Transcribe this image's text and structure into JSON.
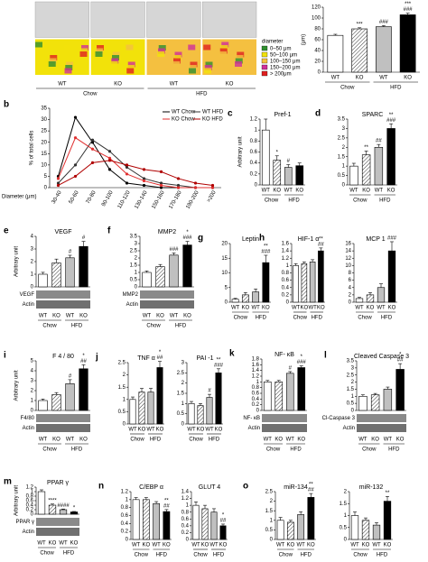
{
  "chart_data": [
    {
      "type": "image",
      "panel": "a",
      "categories": [
        "WT",
        "KO",
        "WT",
        "KO"
      ],
      "groups": [
        "Chow",
        "HFD"
      ],
      "legend_title": "diameter",
      "legend": [
        {
          "label": "0–50 μm",
          "color": "#2f8f2f"
        },
        {
          "label": "50–100 μm",
          "color": "#f2e20a"
        },
        {
          "label": "100–150 μm",
          "color": "#f4c040"
        },
        {
          "label": "150–200 μm",
          "color": "#d0309a"
        },
        {
          "label": "> 200μm",
          "color": "#e02020"
        }
      ]
    },
    {
      "type": "bar",
      "ylabel": "(μm)",
      "categories": [
        "WT",
        "KO",
        "WT",
        "KO"
      ],
      "groups": [
        "Chow",
        "HFD"
      ],
      "values": [
        68,
        80,
        84,
        106
      ],
      "errors": [
        2,
        2,
        2,
        3
      ],
      "ylim": [
        0,
        120
      ],
      "yticks": [
        0,
        20,
        40,
        60,
        80,
        100,
        120
      ],
      "colors": [
        "#ffffff",
        "#ffffff",
        "#c0c0c0",
        "#000000"
      ],
      "hatched": [
        false,
        true,
        false,
        false
      ],
      "annotations": [
        null,
        [
          "***"
        ],
        [
          "###"
        ],
        [
          "***",
          "###"
        ]
      ]
    },
    {
      "type": "line",
      "panel": "b",
      "ylabel": "% of total cells",
      "xlabel": "Diameter (μm)",
      "categories": [
        "30-40",
        "50-60",
        "70-80",
        "90-100",
        "110-120",
        "130-140",
        "150-160",
        "170-180",
        "190-200",
        ">200"
      ],
      "ylim": [
        0,
        35
      ],
      "yticks": [
        0,
        5,
        10,
        15,
        20,
        25,
        30,
        35
      ],
      "series": [
        {
          "name": "WT Chow",
          "color": "#000000",
          "values": [
            5,
            31,
            20,
            8,
            2,
            1,
            0,
            0,
            0,
            0
          ]
        },
        {
          "name": "WT HFD",
          "color": "#333333",
          "values": [
            2,
            10,
            21,
            16,
            9,
            4,
            2,
            1,
            0,
            0
          ]
        },
        {
          "name": "KO Chow",
          "color": "#e03030",
          "values": [
            4,
            22,
            17,
            13,
            6,
            3,
            1,
            0,
            0,
            0
          ]
        },
        {
          "name": "KO HFD",
          "color": "#b00000",
          "values": [
            1,
            5,
            11,
            12,
            10,
            8,
            7,
            4,
            2,
            1
          ]
        }
      ]
    },
    {
      "type": "bar",
      "panel": "c",
      "title": "Pref-1",
      "ylabel": "Arbitrary unit",
      "categories": [
        "WT",
        "KO",
        "WT",
        "KO"
      ],
      "groups": [
        "Chow",
        "HFD"
      ],
      "values": [
        1.0,
        0.45,
        0.32,
        0.35
      ],
      "errors": [
        0.2,
        0.08,
        0.05,
        0.05
      ],
      "ylim": [
        0,
        1.2
      ],
      "yticks": [
        0,
        0.2,
        0.4,
        0.6,
        0.8,
        1,
        1.2
      ],
      "colors": [
        "#ffffff",
        "#ffffff",
        "#c0c0c0",
        "#000000"
      ],
      "hatched": [
        false,
        true,
        false,
        false
      ],
      "annotations": [
        null,
        [
          "*"
        ],
        [
          "#"
        ],
        null
      ]
    },
    {
      "type": "bar",
      "panel": "d",
      "title": "SPARC",
      "categories": [
        "WT",
        "KO",
        "WT",
        "KO"
      ],
      "groups": [
        "Chow",
        "HFD"
      ],
      "values": [
        1.0,
        1.6,
        2.0,
        3.0
      ],
      "errors": [
        0.15,
        0.2,
        0.15,
        0.25
      ],
      "ylim": [
        0,
        3.5
      ],
      "yticks": [
        0,
        0.5,
        1,
        1.5,
        2,
        2.5,
        3,
        3.5
      ],
      "colors": [
        "#ffffff",
        "#ffffff",
        "#c0c0c0",
        "#000000"
      ],
      "hatched": [
        false,
        true,
        false,
        false
      ],
      "annotations": [
        null,
        [
          "**"
        ],
        [
          "##"
        ],
        [
          "**",
          "###"
        ]
      ]
    },
    {
      "type": "bar",
      "panel": "e",
      "title": "VEGF",
      "ylabel": "Arbitrary unit",
      "categories": [
        "WT",
        "KO",
        "WT",
        "KO"
      ],
      "groups": [
        "Chow",
        "HFD"
      ],
      "values": [
        1.0,
        1.9,
        2.3,
        3.2
      ],
      "errors": [
        0.15,
        0.3,
        0.2,
        0.4
      ],
      "ylim": [
        0,
        4
      ],
      "yticks": [
        0,
        1,
        2,
        3,
        4
      ],
      "colors": [
        "#ffffff",
        "#ffffff",
        "#c0c0c0",
        "#000000"
      ],
      "hatched": [
        false,
        true,
        false,
        false
      ],
      "annotations": [
        null,
        null,
        [
          "#"
        ],
        [
          "#"
        ]
      ],
      "blot_labels": [
        "VEGF",
        "Actin"
      ]
    },
    {
      "type": "bar",
      "panel": "f",
      "title": "MMP2",
      "categories": [
        "WT",
        "KO",
        "WT",
        "KO"
      ],
      "groups": [
        "Chow",
        "HFD"
      ],
      "values": [
        1.0,
        1.4,
        2.2,
        2.9
      ],
      "errors": [
        0.1,
        0.15,
        0.15,
        0.25
      ],
      "ylim": [
        0,
        3.5
      ],
      "yticks": [
        0,
        0.5,
        1,
        1.5,
        2,
        2.5,
        3,
        3.5
      ],
      "colors": [
        "#ffffff",
        "#ffffff",
        "#c0c0c0",
        "#000000"
      ],
      "hatched": [
        false,
        true,
        false,
        false
      ],
      "annotations": [
        null,
        null,
        [
          "###"
        ],
        [
          "*",
          "###"
        ]
      ],
      "blot_labels": [
        "MMP2",
        "Actin"
      ]
    },
    {
      "type": "bar",
      "panel": "g",
      "title": "Leptin",
      "categories": [
        "WT",
        "KO",
        "WT",
        "KO"
      ],
      "groups": [
        "Chow",
        "HFD"
      ],
      "values": [
        1.0,
        2.5,
        3.5,
        13.5
      ],
      "errors": [
        0.3,
        0.8,
        1.0,
        2.5
      ],
      "ylim": [
        0,
        20
      ],
      "yticks": [
        0,
        5,
        10,
        15,
        20
      ],
      "colors": [
        "#ffffff",
        "#ffffff",
        "#c0c0c0",
        "#000000"
      ],
      "hatched": [
        false,
        true,
        false,
        false
      ],
      "annotations": [
        null,
        null,
        null,
        [
          "**",
          "###"
        ]
      ]
    },
    {
      "type": "bar",
      "panel": "h",
      "title": "HIF-1 α",
      "categories": [
        "WT",
        "KO",
        "WT",
        "KO"
      ],
      "groups": [
        "Chow",
        "HFD"
      ],
      "values": [
        1.0,
        1.05,
        1.1,
        1.4
      ],
      "errors": [
        0.05,
        0.05,
        0.06,
        0.08
      ],
      "ylim": [
        0,
        1.6
      ],
      "yticks": [
        0,
        0.2,
        0.4,
        0.6,
        0.8,
        1,
        1.2,
        1.4,
        1.6
      ],
      "colors": [
        "#ffffff",
        "#ffffff",
        "#c0c0c0",
        "#000000"
      ],
      "hatched": [
        false,
        true,
        false,
        false
      ],
      "annotations": [
        null,
        null,
        null,
        [
          "**",
          "##"
        ]
      ]
    },
    {
      "type": "bar",
      "title": "MCP 1",
      "categories": [
        "WT",
        "KO",
        "WT",
        "KO"
      ],
      "groups": [
        "Chow",
        "HFD"
      ],
      "values": [
        1.0,
        2.0,
        4.0,
        14.0
      ],
      "errors": [
        0.3,
        0.6,
        1.0,
        2.5
      ],
      "ylim": [
        0,
        16
      ],
      "yticks": [
        0,
        2,
        4,
        6,
        8,
        10,
        12,
        14,
        16
      ],
      "colors": [
        "#ffffff",
        "#ffffff",
        "#c0c0c0",
        "#000000"
      ],
      "hatched": [
        false,
        true,
        false,
        false
      ],
      "annotations": [
        null,
        null,
        null,
        [
          "###"
        ]
      ]
    },
    {
      "type": "bar",
      "panel": "i",
      "title": "F 4 / 80",
      "ylabel": "Arbitrary unit",
      "categories": [
        "WT",
        "KO",
        "WT",
        "KO"
      ],
      "groups": [
        "Chow",
        "HFD"
      ],
      "values": [
        1.0,
        1.6,
        2.7,
        4.2
      ],
      "errors": [
        0.15,
        0.2,
        0.4,
        0.4
      ],
      "ylim": [
        0,
        5
      ],
      "yticks": [
        0,
        1,
        2,
        3,
        4,
        5
      ],
      "colors": [
        "#ffffff",
        "#ffffff",
        "#c0c0c0",
        "#000000"
      ],
      "hatched": [
        false,
        true,
        false,
        false
      ],
      "annotations": [
        null,
        null,
        [
          "#"
        ],
        [
          "*",
          "##"
        ]
      ],
      "blot_labels": [
        "F4/80",
        "Actin"
      ]
    },
    {
      "type": "bar",
      "panel": "j",
      "title": "TNF α",
      "categories": [
        "WT",
        "KO",
        "WT",
        "KO"
      ],
      "groups": [
        "Chow",
        "HFD"
      ],
      "values": [
        1.0,
        1.3,
        1.3,
        2.3
      ],
      "errors": [
        0.1,
        0.15,
        0.15,
        0.25
      ],
      "ylim": [
        0,
        2.5
      ],
      "yticks": [
        0,
        0.5,
        1,
        1.5,
        2,
        2.5
      ],
      "colors": [
        "#ffffff",
        "#ffffff",
        "#c0c0c0",
        "#000000"
      ],
      "hatched": [
        false,
        true,
        false,
        false
      ],
      "annotations": [
        null,
        null,
        null,
        [
          "*",
          "##"
        ]
      ]
    },
    {
      "type": "bar",
      "title": "PAI -1",
      "categories": [
        "WT",
        "KO",
        "WT",
        "KO"
      ],
      "groups": [
        "Chow",
        "HFD"
      ],
      "values": [
        1.0,
        0.9,
        1.3,
        2.5
      ],
      "errors": [
        0.1,
        0.1,
        0.15,
        0.2
      ],
      "ylim": [
        0,
        3
      ],
      "yticks": [
        0,
        0.5,
        1,
        1.5,
        2,
        2.5,
        3
      ],
      "colors": [
        "#ffffff",
        "#ffffff",
        "#c0c0c0",
        "#000000"
      ],
      "hatched": [
        false,
        true,
        false,
        false
      ],
      "annotations": [
        null,
        null,
        [
          "#"
        ],
        [
          "**",
          "###"
        ]
      ]
    },
    {
      "type": "bar",
      "panel": "k",
      "title": "NF- κB",
      "categories": [
        "WT",
        "KO",
        "WT",
        "KO"
      ],
      "groups": [
        "Chow",
        "HFD"
      ],
      "values": [
        1.0,
        1.0,
        1.3,
        1.5
      ],
      "errors": [
        0.05,
        0.05,
        0.06,
        0.06
      ],
      "ylim": [
        0,
        1.8
      ],
      "yticks": [
        0,
        0.2,
        0.4,
        0.6,
        0.8,
        1,
        1.2,
        1.4,
        1.6,
        1.8
      ],
      "colors": [
        "#ffffff",
        "#ffffff",
        "#c0c0c0",
        "#000000"
      ],
      "hatched": [
        false,
        true,
        false,
        false
      ],
      "annotations": [
        null,
        null,
        [
          "#"
        ],
        [
          "*",
          "###"
        ]
      ],
      "blot_labels": [
        "NF- κB",
        "Actin"
      ]
    },
    {
      "type": "bar",
      "panel": "l",
      "title": "Cleaved Caspase 3",
      "categories": [
        "WT",
        "KO",
        "WT",
        "KO"
      ],
      "groups": [
        "Chow",
        "HFD"
      ],
      "values": [
        1.0,
        1.1,
        1.5,
        2.9
      ],
      "errors": [
        0.1,
        0.1,
        0.15,
        0.4
      ],
      "ylim": [
        0,
        3.5
      ],
      "yticks": [
        0,
        0.5,
        1,
        1.5,
        2,
        2.5,
        3,
        3.5
      ],
      "colors": [
        "#ffffff",
        "#ffffff",
        "#c0c0c0",
        "#000000"
      ],
      "hatched": [
        false,
        true,
        false,
        false
      ],
      "annotations": [
        null,
        null,
        null,
        [
          "*",
          "##"
        ]
      ],
      "blot_labels": [
        "Cl-Caspase 3",
        "Actin"
      ]
    },
    {
      "type": "bar",
      "panel": "m",
      "title": "PPAR γ",
      "ylabel": "Arbitrary unit",
      "categories": [
        "WT",
        "KO",
        "WT",
        "KO"
      ],
      "groups": [
        "Chow",
        "HFD"
      ],
      "values": [
        1.0,
        0.4,
        0.2,
        0.1
      ],
      "errors": [
        0.08,
        0.05,
        0.03,
        0.02
      ],
      "ylim": [
        0,
        1.2
      ],
      "yticks": [
        0,
        0.2,
        0.4,
        0.6,
        0.8,
        1,
        1.2
      ],
      "colors": [
        "#ffffff",
        "#ffffff",
        "#c0c0c0",
        "#000000"
      ],
      "hatched": [
        false,
        true,
        false,
        false
      ],
      "annotations": [
        null,
        [
          "****"
        ],
        [
          "####"
        ],
        [
          "*"
        ]
      ],
      "blot_labels": [
        "PPAR γ",
        "Actin"
      ]
    },
    {
      "type": "bar",
      "panel": "n",
      "title": "C/EBP α",
      "categories": [
        "WT",
        "KO",
        "WT",
        "KO"
      ],
      "groups": [
        "Chow",
        "HFD"
      ],
      "values": [
        1.0,
        1.0,
        0.9,
        0.7
      ],
      "errors": [
        0.05,
        0.05,
        0.05,
        0.05
      ],
      "ylim": [
        0,
        1.2
      ],
      "yticks": [
        0,
        0.2,
        0.4,
        0.6,
        0.8,
        1,
        1.2
      ],
      "colors": [
        "#ffffff",
        "#ffffff",
        "#c0c0c0",
        "#000000"
      ],
      "hatched": [
        false,
        true,
        false,
        false
      ],
      "annotations": [
        null,
        null,
        null,
        [
          "**",
          "##"
        ]
      ]
    },
    {
      "type": "bar",
      "title": "GLUT 4",
      "categories": [
        "WT",
        "KO",
        "WT",
        "KO"
      ],
      "groups": [
        "Chow",
        "HFD"
      ],
      "values": [
        1.0,
        0.9,
        0.8,
        0.4
      ],
      "errors": [
        0.1,
        0.1,
        0.1,
        0.05
      ],
      "ylim": [
        0,
        1.4
      ],
      "yticks": [
        0,
        0.2,
        0.4,
        0.6,
        0.8,
        1,
        1.2,
        1.4
      ],
      "colors": [
        "#ffffff",
        "#ffffff",
        "#c0c0c0",
        "#000000"
      ],
      "hatched": [
        false,
        true,
        false,
        false
      ],
      "annotations": [
        null,
        null,
        null,
        [
          "*",
          "##"
        ]
      ]
    },
    {
      "type": "bar",
      "panel": "o",
      "title": "miR-134",
      "categories": [
        "WT",
        "KO",
        "WT",
        "KO"
      ],
      "groups": [
        "Chow",
        "HFD"
      ],
      "values": [
        1.0,
        0.9,
        1.3,
        2.2
      ],
      "errors": [
        0.15,
        0.1,
        0.15,
        0.2
      ],
      "ylim": [
        0,
        2.5
      ],
      "yticks": [
        0,
        0.5,
        1,
        1.5,
        2,
        2.5
      ],
      "colors": [
        "#ffffff",
        "#ffffff",
        "#c0c0c0",
        "#000000"
      ],
      "hatched": [
        false,
        true,
        false,
        false
      ],
      "annotations": [
        null,
        null,
        null,
        [
          "**",
          "##"
        ]
      ]
    },
    {
      "type": "bar",
      "title": "miR-132",
      "categories": [
        "WT",
        "KO",
        "WT",
        "KO"
      ],
      "groups": [
        "Chow",
        "HFD"
      ],
      "values": [
        1.0,
        0.8,
        0.6,
        1.6
      ],
      "errors": [
        0.15,
        0.1,
        0.1,
        0.2
      ],
      "ylim": [
        0,
        2
      ],
      "yticks": [
        0,
        0.5,
        1,
        1.5,
        2
      ],
      "colors": [
        "#ffffff",
        "#ffffff",
        "#c0c0c0",
        "#000000"
      ],
      "hatched": [
        false,
        true,
        false,
        false
      ],
      "annotations": [
        null,
        null,
        null,
        [
          "**"
        ]
      ]
    }
  ]
}
